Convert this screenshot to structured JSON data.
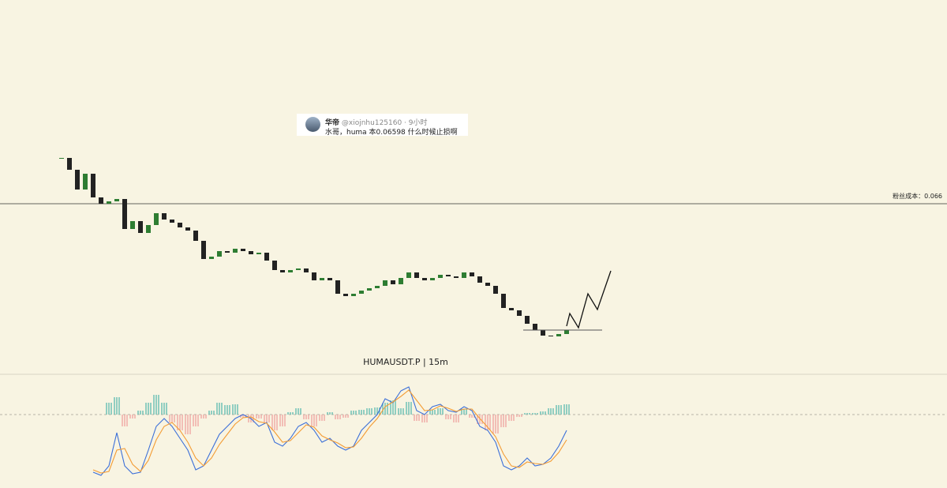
{
  "post": {
    "author": "华帝",
    "handle": "@xiojnhu125160 · 9小时",
    "text": "水哥，huma 本0.06598 什么时候止损啊"
  },
  "chart_data": [
    {
      "type": "candlestick",
      "title": "HUMAUSDT.P | 15m",
      "up_color": "#2e7d32",
      "down_color": "#222222",
      "xlim": [
        -7.8,
        112.2
      ],
      "ylim": [
        0.0554,
        0.0789
      ],
      "values": [
        0.0689,
        0.06815,
        0.0669,
        0.0679,
        0.0664,
        0.066,
        0.06615,
        0.0663,
        0.0644,
        0.0649,
        0.06415,
        0.06465,
        0.0654,
        0.065,
        0.0648,
        0.0645,
        0.0643,
        0.06365,
        0.0625,
        0.06265,
        0.063,
        0.0629,
        0.06315,
        0.063,
        0.0628,
        0.0629,
        0.0624,
        0.0618,
        0.06165,
        0.0618,
        0.0619,
        0.06165,
        0.06115,
        0.0613,
        0.06115,
        0.0603,
        0.06015,
        0.0603,
        0.0605,
        0.06065,
        0.0608,
        0.06115,
        0.0609,
        0.0613,
        0.06165,
        0.0613,
        0.06115,
        0.0613,
        0.0615,
        0.0614,
        0.0613,
        0.06165,
        0.0614,
        0.061,
        0.0608,
        0.0603,
        0.0594,
        0.05925,
        0.0589,
        0.0584,
        0.058,
        0.05765,
        0.0576,
        0.05775,
        0.058
      ],
      "level": {
        "value": 0.066,
        "label": "粉丝成本：0.066"
      },
      "support": 0.058,
      "projection": {
        "x": [
          64,
          64.4,
          65.5,
          66.7,
          67.9,
          69.6
        ],
        "values": [
          0.05825,
          0.05905,
          0.05815,
          0.0603,
          0.0593,
          0.06175
        ],
        "color": "#111111"
      }
    },
    {
      "type": "macd",
      "xlim": [
        -7.8,
        112.2
      ],
      "ylim": [
        -9.3,
        5
      ],
      "up_color": "#4db6ac",
      "down_color": "#ef9a9a",
      "histogram": [
        null,
        null,
        null,
        null,
        null,
        null,
        1.5,
        2.2,
        -1.5,
        -0.5,
        0.5,
        1.5,
        2.5,
        1.5,
        -1,
        -2,
        -2.5,
        -1.5,
        -0.5,
        0.5,
        1.5,
        1.2,
        1.3,
        -0.4,
        -1,
        -0.5,
        -1,
        -2,
        -1.5,
        0.3,
        0.8,
        -0.6,
        -1.5,
        -0.8,
        0.3,
        -0.6,
        -0.4,
        0.5,
        0.6,
        0.8,
        0.9,
        1.5,
        1.8,
        0.8,
        1.6,
        -0.8,
        -1,
        0.6,
        0.8,
        -0.6,
        -1,
        0.7,
        -0.4,
        -1.2,
        -2,
        -2.4,
        -1.6,
        -0.8,
        -0.3,
        0.2,
        0.2,
        0.4,
        0.8,
        1.2,
        1.3
      ],
      "lines": [
        {
          "color": "#3b6fd8",
          "values": [
            null,
            null,
            null,
            null,
            -7.3,
            -7.7,
            -6.5,
            -2.3,
            -6.5,
            -7.5,
            -7.3,
            -4.5,
            -1.5,
            -0.5,
            -1.5,
            -3,
            -4.5,
            -7,
            -6.5,
            -4.5,
            -2.5,
            -1.5,
            -0.5,
            0,
            -0.5,
            -1.5,
            -1,
            -3.5,
            -4,
            -3,
            -1.5,
            -1,
            -2,
            -3.5,
            -3,
            -4,
            -4.5,
            -4,
            -2,
            -1,
            0,
            2,
            1.5,
            3,
            3.5,
            0.5,
            0,
            1,
            1.3,
            0.5,
            0.3,
            1,
            0.5,
            -1.5,
            -2,
            -3.5,
            -6.5,
            -7,
            -6.5,
            -5.5,
            -6.5,
            -6.3,
            -5.5,
            -4,
            -2
          ]
        },
        {
          "color": "#f39c34",
          "values": [
            null,
            null,
            null,
            null,
            -7,
            -7.4,
            -7.2,
            -4.5,
            -4.3,
            -6.3,
            -7.2,
            -5.8,
            -3.2,
            -1.5,
            -1,
            -2,
            -3.5,
            -5.5,
            -6.5,
            -5.5,
            -3.8,
            -2.5,
            -1.2,
            -0.4,
            -0.3,
            -0.9,
            -1.1,
            -2.2,
            -3.5,
            -3.3,
            -2.3,
            -1.3,
            -1.6,
            -2.7,
            -3.2,
            -3.6,
            -4.2,
            -4.1,
            -3,
            -1.6,
            -0.5,
            1,
            1.6,
            2.3,
            3.1,
            1.8,
            0.5,
            0.6,
            1.1,
            0.8,
            0.4,
            0.7,
            0.7,
            -0.5,
            -1.6,
            -2.8,
            -5,
            -6.5,
            -6.7,
            -6,
            -6.2,
            -6.3,
            -5.9,
            -4.8,
            -3.2
          ]
        }
      ]
    }
  ]
}
